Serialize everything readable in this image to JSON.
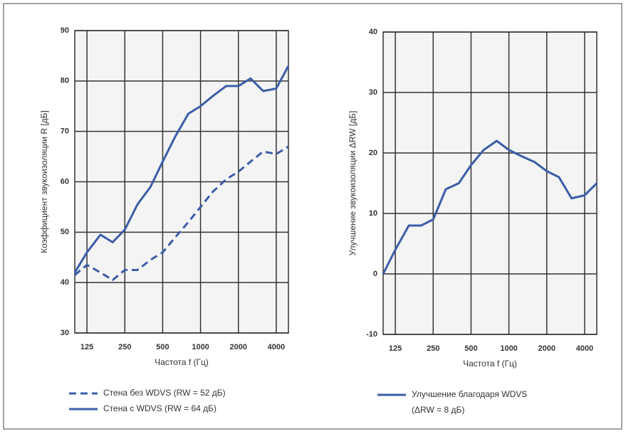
{
  "chart_data": [
    {
      "type": "line",
      "ylabel": "Коэффициент звукоизоляции R [дБ]",
      "xlabel": "Частота f (Гц)",
      "x": [
        100,
        125,
        160,
        200,
        250,
        315,
        400,
        500,
        630,
        800,
        1000,
        1250,
        1600,
        2000,
        2500,
        3150,
        4000,
        5000
      ],
      "xlim": [
        100,
        5000
      ],
      "xticks": [
        125,
        250,
        500,
        1000,
        2000,
        4000
      ],
      "log_x": true,
      "ylim": [
        30,
        90
      ],
      "yticks": [
        30,
        40,
        50,
        60,
        70,
        80,
        90
      ],
      "grid": true,
      "series": [
        {
          "name": "Стена без WDVS (RW = 52 дБ)",
          "color": "#3a5ea8",
          "style": "dashed",
          "values": [
            41.5,
            43.5,
            42,
            40.5,
            42.5,
            42.5,
            44.5,
            46,
            49,
            52,
            55,
            58,
            60.5,
            62,
            64,
            66,
            65.5,
            67
          ]
        },
        {
          "name": "Стена с WDVS (RW = 64 дБ)",
          "color": "#3a5ea8",
          "style": "solid",
          "values": [
            42,
            46,
            49.5,
            48,
            50.5,
            55.5,
            59,
            64,
            69,
            73.5,
            75,
            77,
            79,
            79,
            80.5,
            78,
            78.5,
            83
          ]
        }
      ]
    },
    {
      "type": "line",
      "ylabel": "Улучшение звукоизоляции    ΔRW [дБ]",
      "xlabel": "Частота f (Гц)",
      "x": [
        100,
        125,
        160,
        200,
        250,
        315,
        400,
        500,
        630,
        800,
        1000,
        1250,
        1600,
        2000,
        2500,
        3150,
        4000,
        5000
      ],
      "xlim": [
        100,
        5000
      ],
      "xticks": [
        125,
        250,
        500,
        1000,
        2000,
        4000
      ],
      "log_x": true,
      "ylim": [
        -10,
        40
      ],
      "yticks": [
        -10,
        0,
        10,
        20,
        30,
        40
      ],
      "grid": true,
      "legend_note": "(ΔRW = 8 дБ)",
      "series": [
        {
          "name": "Улучшение благодаря WDVS",
          "color": "#3a5ea8",
          "style": "solid",
          "values": [
            0,
            4,
            8,
            8,
            9,
            14,
            15,
            18,
            20.5,
            22,
            20.5,
            19.5,
            18.5,
            17,
            16,
            12.5,
            13,
            15
          ]
        }
      ]
    }
  ]
}
